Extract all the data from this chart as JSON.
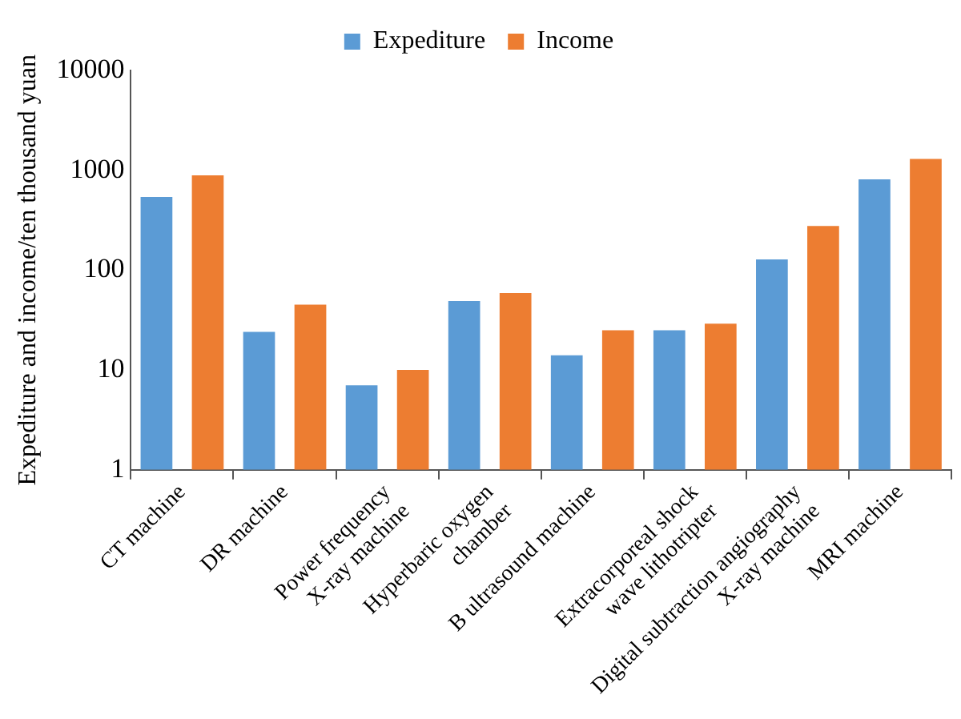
{
  "chart_data": {
    "type": "bar",
    "ylabel": "Expediture and income/ten thousand yuan",
    "categories": [
      "CT machine",
      "DR machine",
      "Power frequency\nX-ray machine",
      "Hyperbaric oxygen\nchamber",
      "B ultrasound machine",
      "Extracorporeal shock\nwave lithotripter",
      "Digital subtraction angiography\nX-ray machine",
      "MRI machine"
    ],
    "series": [
      {
        "name": "Expediture",
        "color": "#5b9bd5",
        "values": [
          540,
          24,
          7,
          49,
          14,
          25,
          128,
          810
        ]
      },
      {
        "name": "Income",
        "color": "#ed7d31",
        "values": [
          890,
          45,
          10,
          59,
          25,
          29,
          277,
          1300
        ]
      }
    ],
    "log": true,
    "ylim": [
      1,
      10000
    ],
    "yticks": [
      1,
      10,
      100,
      1000,
      10000
    ],
    "grid": false,
    "legend": "top"
  }
}
